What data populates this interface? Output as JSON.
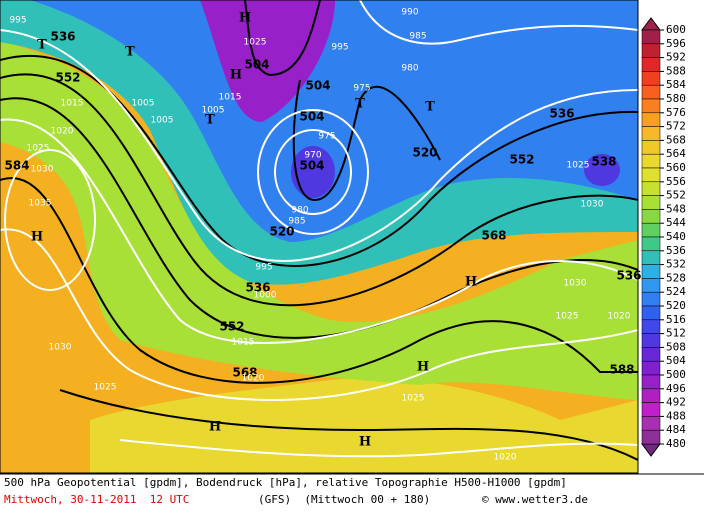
{
  "map": {
    "labels": [
      "995",
      "536",
      "T",
      "T",
      "H",
      "1025",
      "504",
      "H",
      "995",
      "990",
      "985",
      "980",
      "504",
      "975",
      "T",
      "T",
      "504",
      "975",
      "1015",
      "1005",
      "T",
      "1005",
      "1005",
      "552",
      "1015",
      "1020",
      "1025",
      "584",
      "1030",
      "970",
      "504",
      "520",
      "552",
      "538",
      "536",
      "1025",
      "1030",
      "1035",
      "H",
      "980",
      "985",
      "520",
      "995",
      "568",
      "H",
      "1030",
      "536",
      "1000",
      "552",
      "1015",
      "1030",
      "1025",
      "1020",
      "H",
      "568",
      "1020",
      "1025",
      "1025",
      "H",
      "H",
      "1020",
      "588",
      "536"
    ]
  },
  "legend": {
    "levels": [
      600,
      596,
      592,
      588,
      584,
      580,
      576,
      572,
      568,
      564,
      560,
      556,
      552,
      548,
      544,
      540,
      536,
      532,
      528,
      524,
      520,
      516,
      512,
      508,
      504,
      500,
      496,
      492,
      488,
      484,
      480
    ],
    "colors": [
      "#a0204a",
      "#c02030",
      "#e02828",
      "#f04020",
      "#f86020",
      "#f88020",
      "#f8a020",
      "#f8b828",
      "#f0c828",
      "#e8d830",
      "#e0e030",
      "#c8e030",
      "#a8e038",
      "#88d840",
      "#60d060",
      "#40c888",
      "#30c0b8",
      "#30b0e0",
      "#3098f0",
      "#3080f0",
      "#3060f0",
      "#4048e8",
      "#5038e0",
      "#6828d8",
      "#8020d0",
      "#9820c8",
      "#b020c0",
      "#c020c8",
      "#a830b0",
      "#8c3098",
      "#702880"
    ]
  },
  "footer": {
    "description": "500 hPa Geopotential [gpdm], Bodendruck [hPa], relative Topographie H500-H1000 [gpdm]",
    "date": "Mittwoch, 30-11-2011  12 UTC",
    "model": "(GFS)  (Mittwoch 00 + 180)",
    "source": "© www.wetter3.de"
  }
}
